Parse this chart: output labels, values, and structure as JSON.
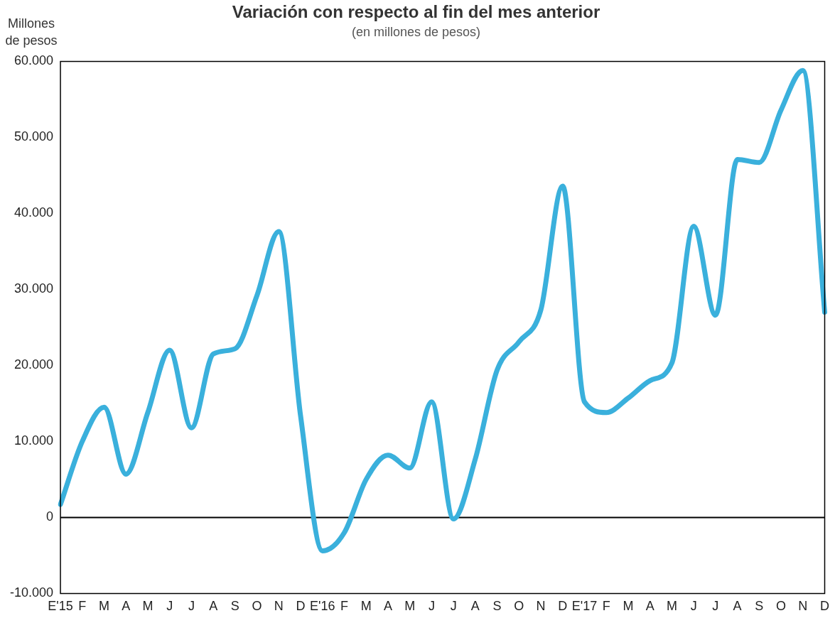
{
  "chart_data": {
    "type": "line",
    "title": "Variación con respecto al fin del mes anterior",
    "subtitle": "(en millones de pesos)",
    "ylabel": "Millones de pesos",
    "categories": [
      "E'15",
      "F",
      "M",
      "A",
      "M",
      "J",
      "J",
      "A",
      "S",
      "O",
      "N",
      "D",
      "E'16",
      "F",
      "M",
      "A",
      "M",
      "J",
      "J",
      "A",
      "S",
      "O",
      "N",
      "D",
      "E'17",
      "F",
      "M",
      "A",
      "M",
      "J",
      "J",
      "A",
      "S",
      "O",
      "N",
      "D"
    ],
    "series": [
      {
        "color": "#3ab0dc",
        "values": [
          1700,
          10000,
          14500,
          5700,
          13800,
          22000,
          11800,
          21500,
          22200,
          29200,
          37600,
          13300,
          -4400,
          -2000,
          5000,
          8200,
          6500,
          15200,
          -200,
          7700,
          19400,
          23100,
          27300,
          43600,
          15200,
          13800,
          15700,
          18000,
          20300,
          38300,
          26600,
          47100,
          46700,
          53600,
          58800,
          27000
        ]
      }
    ],
    "ylim": [
      -10000,
      60000
    ],
    "yticks": [
      {
        "value": -10000,
        "label": "-10.000"
      },
      {
        "value": 0,
        "label": "0"
      },
      {
        "value": 10000,
        "label": "10.000"
      },
      {
        "value": 20000,
        "label": "20.000"
      },
      {
        "value": 30000,
        "label": "30.000"
      },
      {
        "value": 40000,
        "label": "40.000"
      },
      {
        "value": 50000,
        "label": "50.000"
      },
      {
        "value": 60000,
        "label": "60.000"
      }
    ],
    "ref_lines": [
      {
        "axis": "y",
        "value": 0,
        "color": "#000000"
      }
    ],
    "grid": false,
    "legend": false,
    "marker": "none",
    "line_style": "solid"
  }
}
